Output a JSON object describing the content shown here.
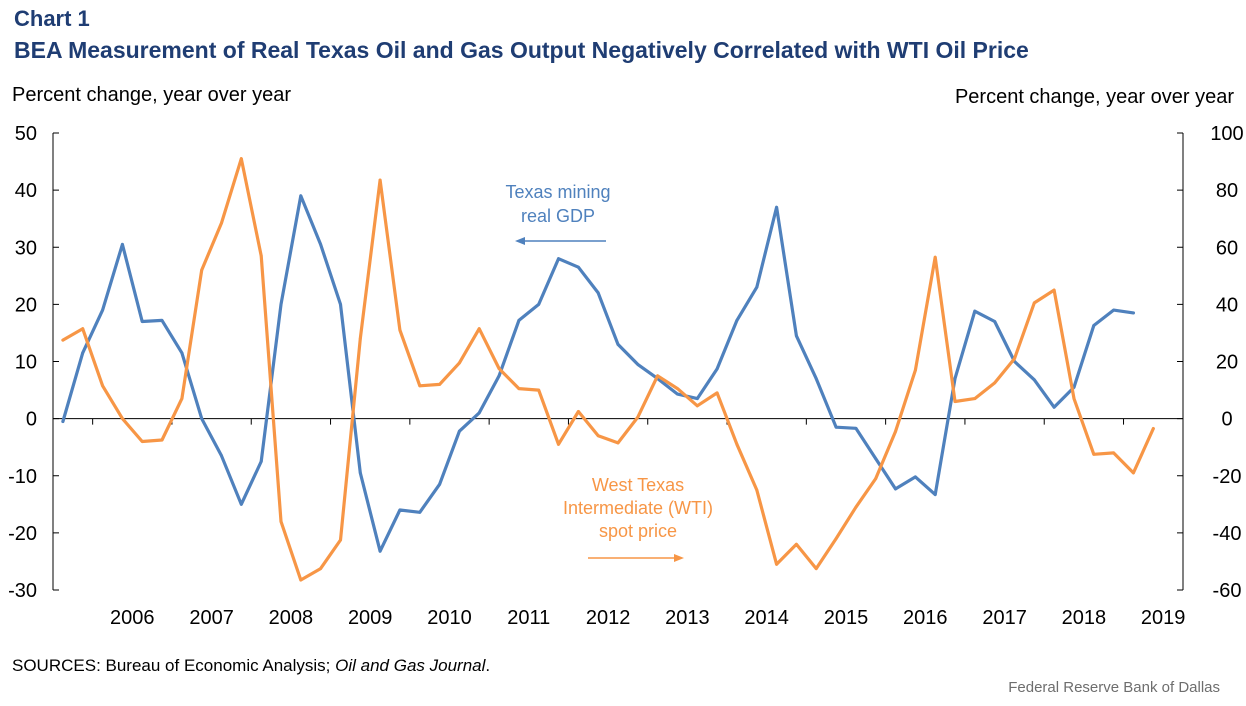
{
  "header": {
    "chart_label": "Chart 1",
    "title": "BEA Measurement of Real Texas Oil and Gas Output Negatively Correlated with WTI Oil Price",
    "ylabel_left": "Percent change, year over year",
    "ylabel_right": "Percent change, year over year"
  },
  "footer": {
    "sources_prefix": "SOURCES: Bureau of Economic Analysis; ",
    "sources_journal": "Oil and Gas Journal",
    "sources_suffix": ".",
    "credit": "Federal Reserve Bank of Dallas"
  },
  "colors": {
    "gdp": "#4f81bd",
    "wti": "#f79646",
    "axis": "#000000"
  },
  "chart_data": {
    "type": "line",
    "x_start": 2005.625,
    "x_step": 0.25,
    "xlim": [
      2005.5,
      2019.75
    ],
    "x_ticks": [
      "2006",
      "2007",
      "2008",
      "2009",
      "2010",
      "2011",
      "2012",
      "2013",
      "2014",
      "2015",
      "2016",
      "2017",
      "2018",
      "2019"
    ],
    "y_left": {
      "ylim": [
        -30,
        50
      ],
      "ticks": [
        -30,
        -20,
        -10,
        0,
        10,
        20,
        30,
        40,
        50
      ]
    },
    "y_right": {
      "ylim": [
        -60,
        100
      ],
      "ticks": [
        -60,
        -40,
        -20,
        0,
        20,
        40,
        60,
        80,
        100
      ]
    },
    "series": [
      {
        "name": "Texas mining real GDP",
        "axis": "left",
        "color": "#4f81bd",
        "values": [
          -0.5,
          11.5,
          19,
          30.5,
          17,
          17.2,
          11.5,
          0,
          -6.5,
          -15,
          -7.5,
          20,
          39,
          30.5,
          20,
          -9.5,
          -23.2,
          -16,
          -16.4,
          -11.5,
          -2.2,
          1,
          7.5,
          17.2,
          20,
          28,
          26.5,
          22,
          13,
          9.5,
          7,
          4.3,
          3.5,
          8.7,
          17.2,
          23,
          37,
          14.5,
          7,
          -1.5,
          -1.7,
          -7,
          -12.3,
          -10.2,
          -13.3,
          7,
          18.8,
          17,
          10,
          6.8,
          2,
          5.5,
          16.3,
          19,
          18.5
        ]
      },
      {
        "name": "West Texas Intermediate (WTI) spot price",
        "axis": "right",
        "color": "#f79646",
        "values": [
          27.5,
          31.5,
          11.5,
          0,
          -8,
          -7.5,
          7,
          52,
          68.5,
          91,
          57,
          -36,
          -56.5,
          -52.5,
          -42.5,
          28,
          83.5,
          31,
          11.5,
          12,
          19.5,
          31.5,
          17.5,
          10.5,
          10,
          -9,
          2.5,
          -6,
          -8.5,
          0.5,
          15,
          10.5,
          4.5,
          9,
          -9,
          -25,
          -51,
          -44,
          -52.5,
          -42,
          -31,
          -21,
          -4.5,
          17,
          56.5,
          6,
          7,
          12.5,
          21,
          40.5,
          45,
          7,
          -12.5,
          -12,
          -19,
          -3.5
        ]
      }
    ],
    "annotations": {
      "gdp_label_line1": "Texas mining",
      "gdp_label_line2": "real GDP",
      "wti_label_line1": "West Texas",
      "wti_label_line2": "Intermediate (WTI)",
      "wti_label_line3": "spot price"
    }
  }
}
